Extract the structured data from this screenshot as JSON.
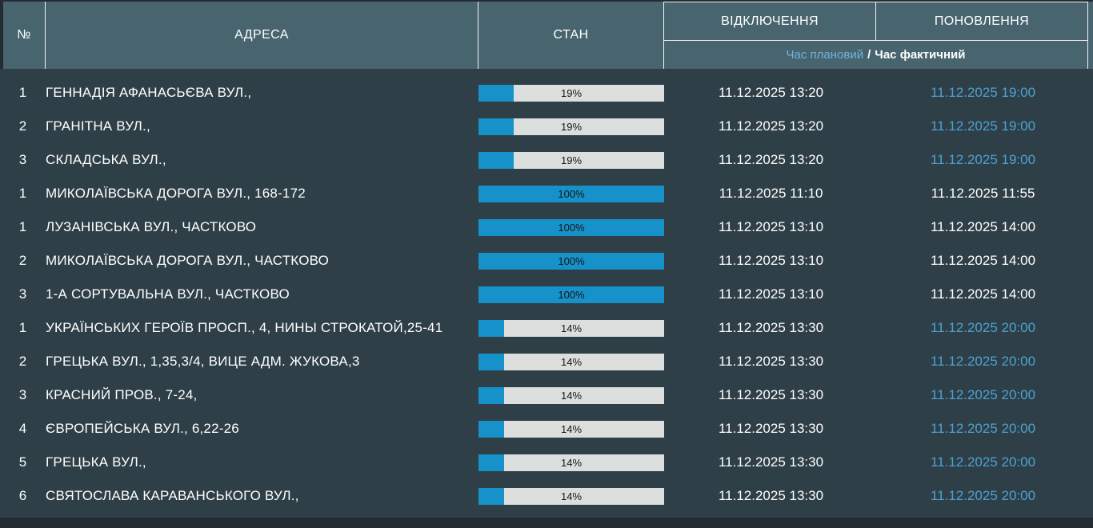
{
  "accent_colors": {
    "header_bg": "#48656f",
    "body_bg": "#2e3f47",
    "progress_blue": "#1791c9",
    "progress_track": "#dcdddd",
    "planned_time_blue": "#4da2d2",
    "text_white": "#ffffff"
  },
  "header": {
    "num_label": "№",
    "address_label": "АДРЕСА",
    "state_label": "СТАН",
    "outage_label": "ВІДКЛЮЧЕННЯ",
    "restore_label": "ПОНОВЛЕННЯ",
    "subheader": {
      "planned_label": "Час плановий",
      "separator": "/",
      "actual_label": "Час фактичний"
    }
  },
  "table": {
    "rows": [
      {
        "num": "1",
        "address": "ГЕННАДІЯ АФАНАСЬЄВА ВУЛ.,",
        "percent": 19,
        "percent_label": "19%",
        "outage": "11.12.2025 13:20",
        "restoration": "11.12.2025 19:00",
        "restoration_type": "planned"
      },
      {
        "num": "2",
        "address": "ГРАНІТНА ВУЛ.,",
        "percent": 19,
        "percent_label": "19%",
        "outage": "11.12.2025 13:20",
        "restoration": "11.12.2025 19:00",
        "restoration_type": "planned"
      },
      {
        "num": "3",
        "address": "СКЛАДСЬКА ВУЛ.,",
        "percent": 19,
        "percent_label": "19%",
        "outage": "11.12.2025 13:20",
        "restoration": "11.12.2025 19:00",
        "restoration_type": "planned"
      },
      {
        "num": "1",
        "address": "МИКОЛАЇВСЬКА ДОРОГА ВУЛ., 168-172",
        "percent": 100,
        "percent_label": "100%",
        "outage": "11.12.2025 11:10",
        "restoration": "11.12.2025 11:55",
        "restoration_type": "actual"
      },
      {
        "num": "1",
        "address": "ЛУЗАНІВСЬКА ВУЛ., ЧАСТКОВО",
        "percent": 100,
        "percent_label": "100%",
        "outage": "11.12.2025 13:10",
        "restoration": "11.12.2025 14:00",
        "restoration_type": "actual"
      },
      {
        "num": "2",
        "address": "МИКОЛАЇВСЬКА ДОРОГА ВУЛ., ЧАСТКОВО",
        "percent": 100,
        "percent_label": "100%",
        "outage": "11.12.2025 13:10",
        "restoration": "11.12.2025 14:00",
        "restoration_type": "actual"
      },
      {
        "num": "3",
        "address": "1-А СОРТУВАЛЬНА ВУЛ., ЧАСТКОВО",
        "percent": 100,
        "percent_label": "100%",
        "outage": "11.12.2025 13:10",
        "restoration": "11.12.2025 14:00",
        "restoration_type": "actual"
      },
      {
        "num": "1",
        "address": "УКРАЇНСЬКИХ ГЕРОЇВ ПРОСП., 4, НИНЫ СТРОКАТОЙ,25-41",
        "percent": 14,
        "percent_label": "14%",
        "outage": "11.12.2025 13:30",
        "restoration": "11.12.2025 20:00",
        "restoration_type": "planned"
      },
      {
        "num": "2",
        "address": "ГРЕЦЬКА ВУЛ., 1,35,3/4, ВИЦЕ АДМ. ЖУКОВА,3",
        "percent": 14,
        "percent_label": "14%",
        "outage": "11.12.2025 13:30",
        "restoration": "11.12.2025 20:00",
        "restoration_type": "planned"
      },
      {
        "num": "3",
        "address": "КРАСНИЙ ПРОВ., 7-24,",
        "percent": 14,
        "percent_label": "14%",
        "outage": "11.12.2025 13:30",
        "restoration": "11.12.2025 20:00",
        "restoration_type": "planned"
      },
      {
        "num": "4",
        "address": "ЄВРОПЕЙСЬКА ВУЛ., 6,22-26",
        "percent": 14,
        "percent_label": "14%",
        "outage": "11.12.2025 13:30",
        "restoration": "11.12.2025 20:00",
        "restoration_type": "planned"
      },
      {
        "num": "5",
        "address": "ГРЕЦЬКА ВУЛ.,",
        "percent": 14,
        "percent_label": "14%",
        "outage": "11.12.2025 13:30",
        "restoration": "11.12.2025 20:00",
        "restoration_type": "planned"
      },
      {
        "num": "6",
        "address": "СВЯТОСЛАВА КАРАВАНСЬКОГО ВУЛ.,",
        "percent": 14,
        "percent_label": "14%",
        "outage": "11.12.2025 13:30",
        "restoration": "11.12.2025 20:00",
        "restoration_type": "planned"
      }
    ]
  }
}
